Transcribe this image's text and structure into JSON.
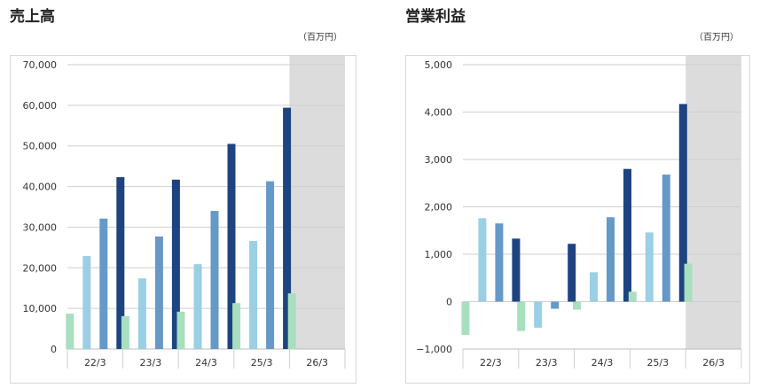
{
  "chart_data": [
    {
      "type": "bar",
      "title": "売上高",
      "unit": "（百万円）",
      "categories": [
        "22/3",
        "23/3",
        "24/3",
        "25/3",
        "26/3"
      ],
      "yticks": [
        "70,000",
        "60,000",
        "50,000",
        "40,000",
        "30,000",
        "20,000",
        "10,000",
        "0"
      ],
      "ylim": [
        0,
        70000
      ],
      "forecast_category": "26/3",
      "series": [
        {
          "color": "#a8dfbf",
          "values": [
            8700,
            8100,
            9200,
            11300,
            13700
          ]
        },
        {
          "color": "#9bcfe3",
          "values": [
            22900,
            17400,
            20900,
            26600,
            null
          ]
        },
        {
          "color": "#6699c8",
          "values": [
            32100,
            27700,
            34000,
            41300,
            null
          ]
        },
        {
          "color": "#1d4480",
          "values": [
            42300,
            41700,
            50500,
            59400,
            null
          ]
        }
      ]
    },
    {
      "type": "bar",
      "title": "営業利益",
      "unit": "（百万円）",
      "categories": [
        "22/3",
        "23/3",
        "24/3",
        "25/3",
        "26/3"
      ],
      "yticks": [
        "5,000",
        "4,000",
        "3,000",
        "2,000",
        "1,000",
        "0",
        "−1,000"
      ],
      "ylim": [
        -1000,
        5000
      ],
      "forecast_category": "26/3",
      "series": [
        {
          "color": "#a8dfbf",
          "values": [
            -700,
            -620,
            -170,
            210,
            800
          ]
        },
        {
          "color": "#9bcfe3",
          "values": [
            1760,
            -550,
            620,
            1460,
            null
          ]
        },
        {
          "color": "#6699c8",
          "values": [
            1650,
            -150,
            1780,
            2680,
            null
          ]
        },
        {
          "color": "#1d4480",
          "values": [
            1330,
            1220,
            2800,
            4170,
            null
          ]
        }
      ]
    }
  ]
}
